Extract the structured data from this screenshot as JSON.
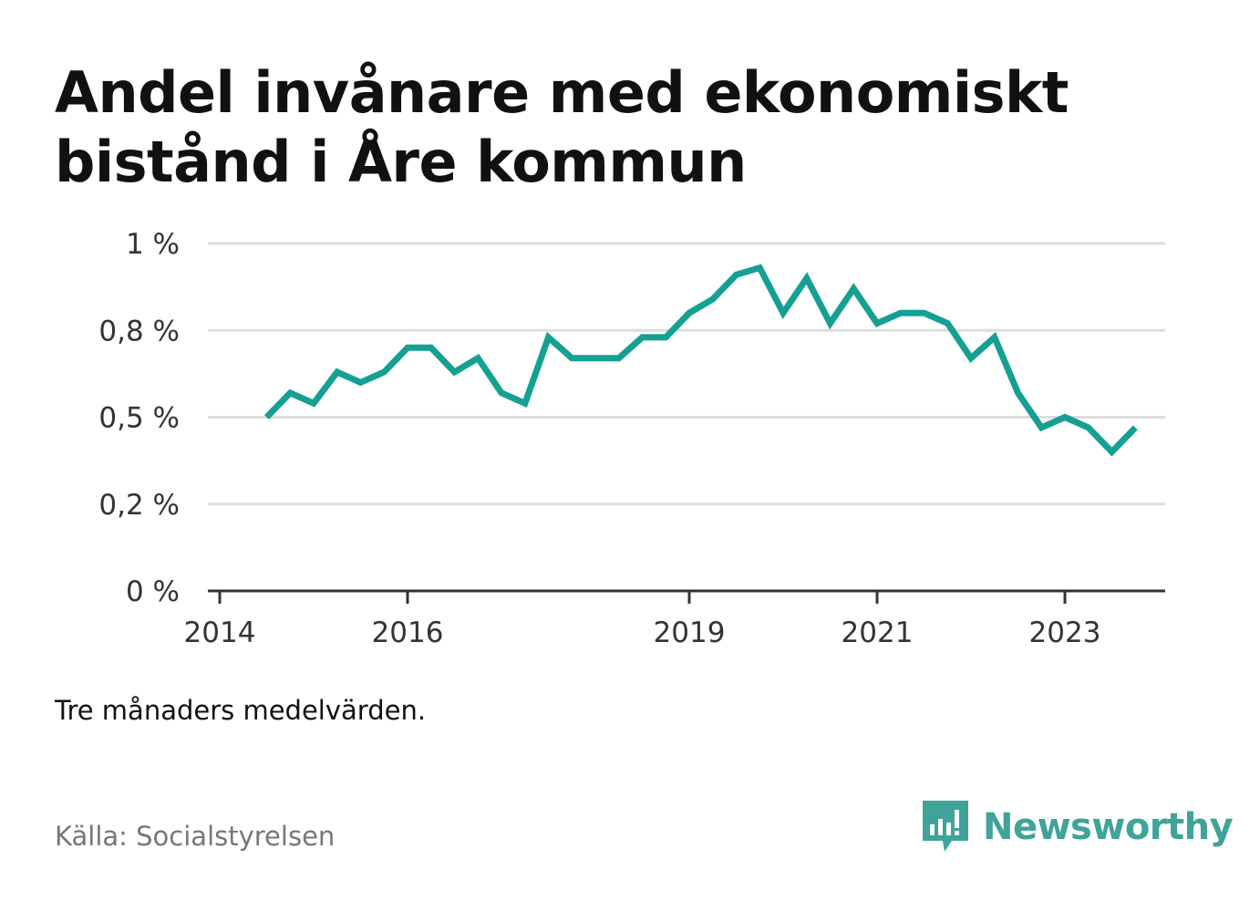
{
  "title": "Andel invånare med ekonomiskt bistånd i Åre kommun",
  "note": "Tre månaders medelvärden.",
  "source": "Källa: Socialstyrelsen",
  "brand": {
    "name": "Newsworthy",
    "icon": "newsworthy-logo-icon",
    "color": "#3fa39a"
  },
  "chart_data": {
    "type": "line",
    "title": "Andel invånare med ekonomiskt bistånd i Åre kommun",
    "xlabel": "",
    "ylabel": "",
    "x_tick_labels": [
      "2014",
      "2016",
      "2019",
      "2021",
      "2023"
    ],
    "y_tick_labels": [
      "0 %",
      "0,2 %",
      "0,5 %",
      "0,8 %",
      "1 %"
    ],
    "ylim": [
      0,
      1
    ],
    "grid": true,
    "legend": "none",
    "line_color": "#14a093",
    "series": [
      {
        "x": [
          "2014-07",
          "2014-10",
          "2015-01",
          "2015-04",
          "2015-07",
          "2015-10",
          "2016-01",
          "2016-04",
          "2016-07",
          "2016-10",
          "2017-01",
          "2017-04",
          "2017-07",
          "2017-10",
          "2018-01",
          "2018-04",
          "2018-07",
          "2018-10",
          "2019-01",
          "2019-04",
          "2019-07",
          "2019-10",
          "2020-01",
          "2020-04",
          "2020-07",
          "2020-10",
          "2021-01",
          "2021-04",
          "2021-07",
          "2021-10",
          "2022-01",
          "2022-04",
          "2022-07",
          "2022-10",
          "2023-01",
          "2023-04",
          "2023-07",
          "2023-10"
        ],
        "values": [
          0.5,
          0.57,
          0.54,
          0.63,
          0.6,
          0.63,
          0.7,
          0.7,
          0.63,
          0.67,
          0.57,
          0.54,
          0.73,
          0.67,
          0.67,
          0.67,
          0.73,
          0.73,
          0.8,
          0.84,
          0.91,
          0.93,
          0.8,
          0.9,
          0.77,
          0.87,
          0.77,
          0.8,
          0.8,
          0.77,
          0.67,
          0.73,
          0.57,
          0.47,
          0.5,
          0.47,
          0.4,
          0.47
        ]
      }
    ]
  }
}
